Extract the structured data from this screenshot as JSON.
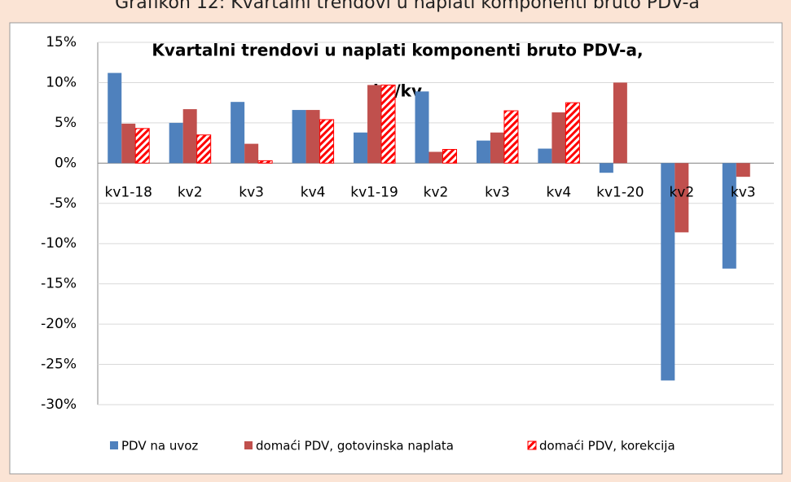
{
  "caption": "Grafikon 12: Kvartalni trendovi u naplati komponenti bruto PDV-a",
  "chart_data": {
    "type": "bar",
    "title": [
      "Kvartalni trendovi u naplati komponenti bruto PDV-a,",
      "kv/kv"
    ],
    "categories": [
      "kv1-18",
      "kv2",
      "kv3",
      "kv4",
      "kv1-19",
      "kv2",
      "kv3",
      "kv4",
      "kv1-20",
      "kv2",
      "kv3"
    ],
    "series": [
      {
        "name": "PDV na uvoz",
        "color": "#4f81bd",
        "values": [
          11.2,
          5.0,
          7.6,
          6.6,
          3.8,
          8.9,
          2.8,
          1.8,
          -1.2,
          -27.0,
          -13.1
        ]
      },
      {
        "name": "domaći PDV, gotovinska naplata",
        "color": "#c0504d",
        "values": [
          4.9,
          6.7,
          2.4,
          6.6,
          9.7,
          1.4,
          3.8,
          6.3,
          10.0,
          -8.6,
          -1.7
        ]
      },
      {
        "name": "domaći PDV, korekcija",
        "color": "#ff0000",
        "pattern": "hatch",
        "values": [
          4.3,
          3.5,
          0.3,
          5.4,
          9.7,
          1.7,
          6.5,
          7.5,
          null,
          null,
          null
        ]
      }
    ],
    "ylim": [
      -30,
      15
    ],
    "yticks": [
      {
        "value": -30,
        "label": "-30%"
      },
      {
        "value": -25,
        "label": "-25%"
      },
      {
        "value": -20,
        "label": "-20%"
      },
      {
        "value": -15,
        "label": "-15%"
      },
      {
        "value": -10,
        "label": "-10%"
      },
      {
        "value": -5,
        "label": "-5%"
      },
      {
        "value": 0,
        "label": "0%"
      },
      {
        "value": 5,
        "label": "5%"
      },
      {
        "value": 10,
        "label": "10%"
      },
      {
        "value": 15,
        "label": "15%"
      }
    ],
    "grid": true,
    "legend": "bottom"
  }
}
